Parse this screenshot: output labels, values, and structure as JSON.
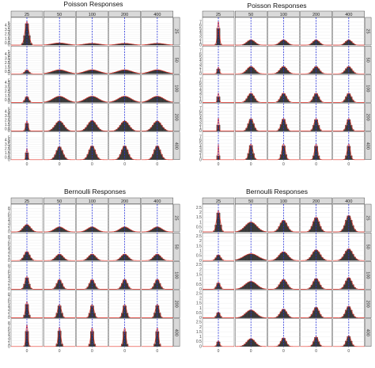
{
  "chart_data": [
    {
      "type": "histogram-facet-grid",
      "title": "Poisson Responses",
      "col_strips": [
        "25",
        "50",
        "100",
        "200",
        "400"
      ],
      "row_strips": [
        "25",
        "50",
        "100",
        "200",
        "400"
      ],
      "x_tick_labels": [
        "0"
      ],
      "y_tick_labels": [
        "0",
        "0.5",
        "1",
        "1.5",
        "2",
        "2.5",
        "3",
        "3.5",
        "4",
        "4.5",
        "5"
      ],
      "ylim": [
        0,
        6
      ],
      "reference_line_x": 0,
      "spread_by_col": [
        0.5,
        1.8,
        1.8,
        1.8,
        1.8
      ],
      "row_sharpness": [
        0.9,
        0.9,
        1.0,
        1.5,
        2.0
      ],
      "peak_by_row": [
        [
          5.4,
          0.5,
          0.4,
          0.4,
          0.4
        ],
        [
          0.9,
          0.9,
          0.9,
          0.9,
          0.9
        ],
        [
          1.4,
          1.4,
          1.4,
          1.4,
          1.4
        ],
        [
          2.3,
          2.3,
          2.4,
          2.3,
          2.3
        ],
        [
          2.6,
          3.0,
          3.2,
          3.2,
          3.2
        ]
      ]
    },
    {
      "type": "histogram-facet-grid",
      "title": "Poisson Responses",
      "col_strips": [
        "25",
        "50",
        "100",
        "200",
        "400"
      ],
      "row_strips": [
        "25",
        "50",
        "100",
        "200",
        "400"
      ],
      "x_tick_labels": [
        "0"
      ],
      "y_tick_labels": [
        "0",
        "1",
        "2",
        "3",
        "4",
        "5",
        "6",
        "7"
      ],
      "ylim": [
        0,
        8
      ],
      "reference_line_x": 0,
      "spread_by_col": [
        0.3,
        1.1,
        1.0,
        0.9,
        0.9
      ],
      "row_sharpness": [
        1.0,
        1.0,
        1.2,
        1.5,
        2.0
      ],
      "peak_by_row": [
        [
          7.2,
          1.6,
          1.6,
          1.6,
          1.6
        ],
        [
          2.0,
          2.2,
          2.2,
          2.2,
          2.2
        ],
        [
          2.8,
          2.8,
          2.8,
          2.8,
          2.8
        ],
        [
          4.0,
          3.8,
          3.8,
          3.8,
          3.8
        ],
        [
          4.8,
          4.8,
          4.8,
          4.8,
          4.8
        ]
      ]
    },
    {
      "type": "histogram-facet-grid",
      "title": "Bernoulli Responses",
      "col_strips": [
        "25",
        "50",
        "100",
        "200",
        "400"
      ],
      "row_strips": [
        "25",
        "50",
        "100",
        "200",
        "400"
      ],
      "x_tick_labels": [
        "0"
      ],
      "y_tick_labels": [
        "0",
        "1",
        "2",
        "3",
        "4",
        "5",
        "6",
        "7",
        "8"
      ],
      "ylim": [
        0,
        9
      ],
      "reference_line_x": 0,
      "spread_by_col": [
        1.0,
        1.3,
        1.3,
        1.3,
        1.3
      ],
      "row_sharpness": [
        1.0,
        1.3,
        1.8,
        2.5,
        3.5
      ],
      "peak_by_row": [
        [
          2.5,
          1.7,
          1.7,
          1.7,
          1.7
        ],
        [
          3.1,
          2.2,
          2.2,
          2.2,
          2.2
        ],
        [
          4.3,
          3.3,
          3.3,
          3.4,
          3.4
        ],
        [
          5.6,
          4.6,
          4.6,
          4.6,
          4.7
        ],
        [
          7.6,
          6.6,
          6.5,
          6.4,
          6.4
        ]
      ]
    },
    {
      "type": "histogram-facet-grid",
      "title": "Bernoulli Responses",
      "col_strips": [
        "25",
        "50",
        "100",
        "200",
        "400"
      ],
      "row_strips": [
        "25",
        "50",
        "100",
        "200",
        "400"
      ],
      "x_tick_labels": [
        "0"
      ],
      "y_tick_labels": [
        "0",
        "0.5",
        "1",
        "1.5",
        "2",
        "2.5"
      ],
      "ylim": [
        0,
        2.7
      ],
      "reference_line_x": 0,
      "spread_by_col": [
        0.5,
        1.6,
        1.0,
        0.9,
        0.9
      ],
      "row_sharpness": [
        1.0,
        0.8,
        1.0,
        1.1,
        1.4
      ],
      "peak_by_row": [
        [
          2.2,
          1.0,
          1.2,
          1.5,
          1.7
        ],
        [
          0.6,
          0.7,
          0.9,
          1.1,
          1.2
        ],
        [
          0.7,
          0.8,
          1.0,
          1.1,
          1.2
        ],
        [
          0.6,
          0.8,
          0.9,
          1.1,
          1.2
        ],
        [
          0.6,
          0.8,
          0.9,
          1.0,
          1.1
        ]
      ]
    }
  ]
}
